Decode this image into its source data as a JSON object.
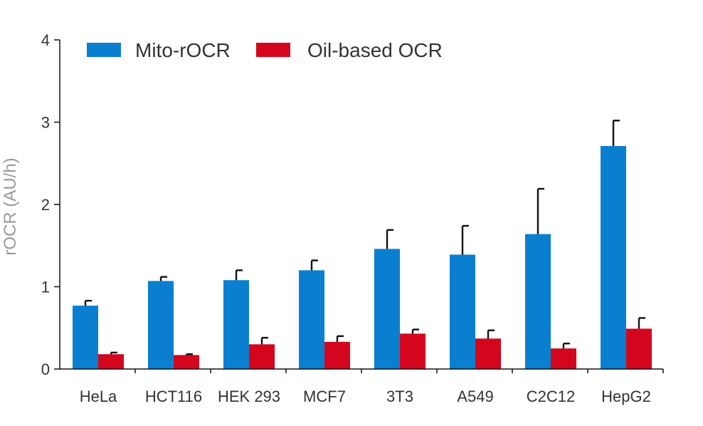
{
  "chart_data": {
    "type": "bar",
    "ylabel": "rOCR (AU/h)",
    "xlabel": "",
    "ylim": [
      0,
      4
    ],
    "yticks": [
      0,
      1,
      2,
      3,
      4
    ],
    "grid": false,
    "legend_position": "top-left",
    "categories": [
      "HeLa",
      "HCT116",
      "HEK 293",
      "MCF7",
      "3T3",
      "A549",
      "C2C12",
      "HepG2"
    ],
    "series": [
      {
        "name": "Mito-rOCR",
        "color": "#0a7fd0",
        "values": [
          0.77,
          1.07,
          1.08,
          1.2,
          1.46,
          1.39,
          1.64,
          2.71
        ],
        "error": [
          0.06,
          0.05,
          0.12,
          0.12,
          0.23,
          0.35,
          0.55,
          0.31
        ]
      },
      {
        "name": "Oil-based OCR",
        "color": "#d4061e",
        "values": [
          0.18,
          0.17,
          0.3,
          0.33,
          0.43,
          0.37,
          0.25,
          0.49
        ],
        "error": [
          0.02,
          0.01,
          0.08,
          0.07,
          0.05,
          0.1,
          0.06,
          0.13
        ]
      }
    ]
  }
}
